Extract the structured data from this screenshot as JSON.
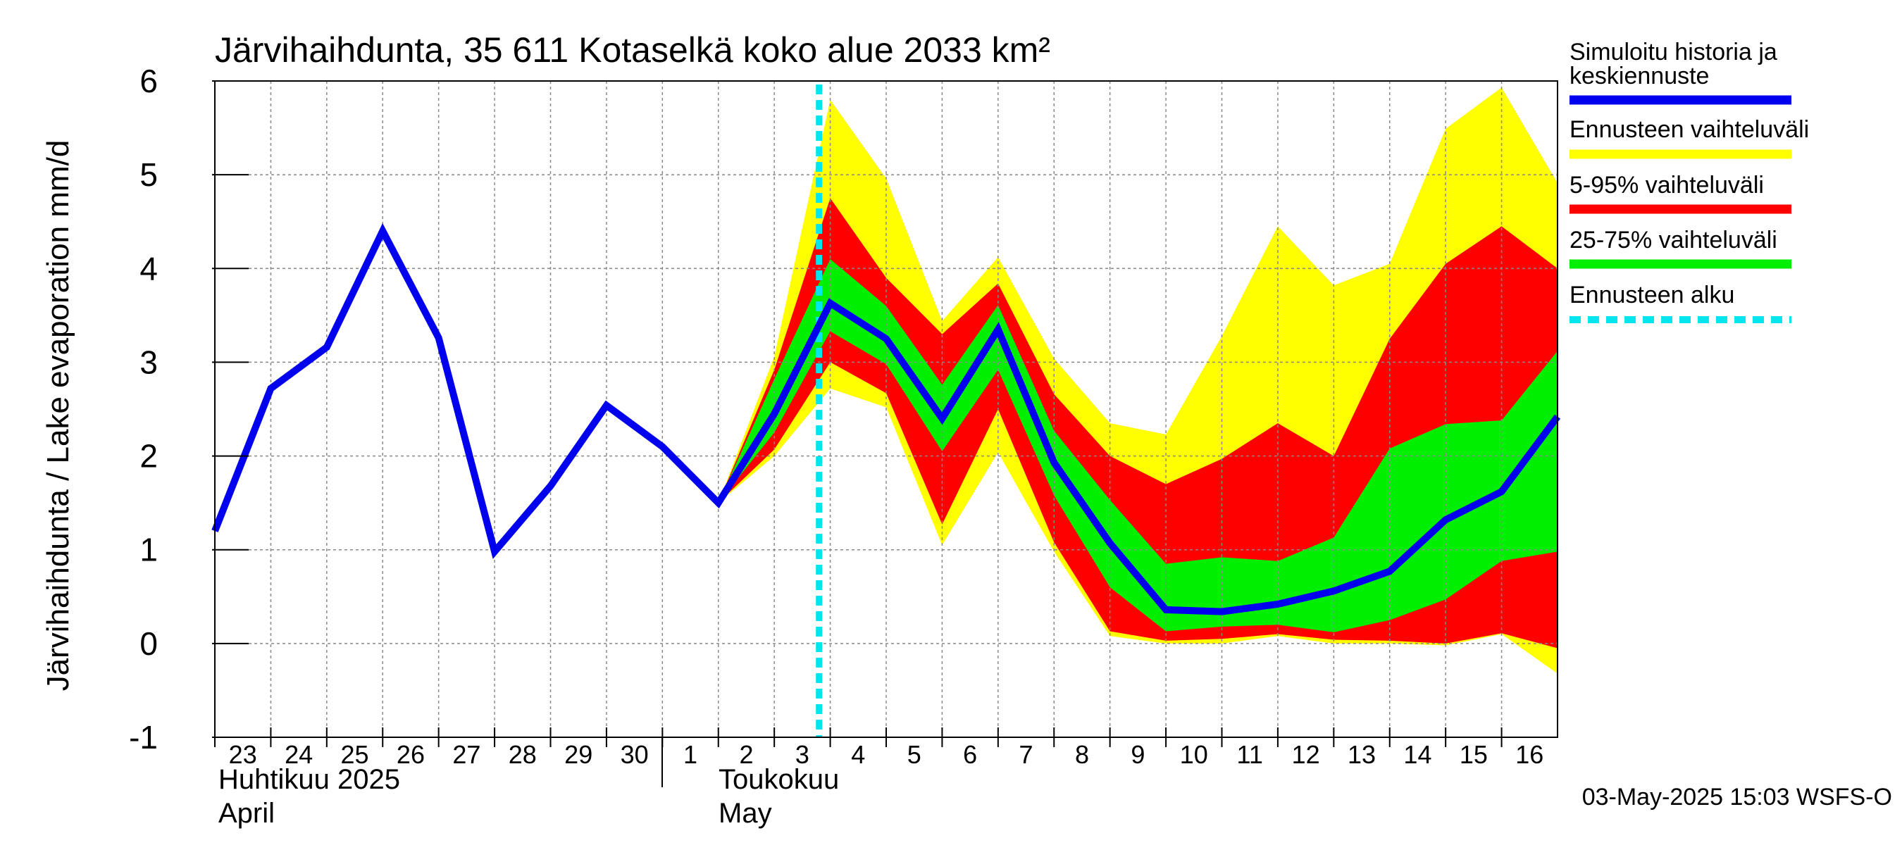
{
  "chart_data": {
    "type": "area",
    "title": "Järvihaihdunta, 35 611 Kotaselkä koko alue 2033 km²",
    "ylabel": "Järvihaihdunta / Lake evaporation   mm/d",
    "ylim": [
      -1,
      6
    ],
    "yticks": [
      -1,
      0,
      1,
      2,
      3,
      4,
      5,
      6
    ],
    "x_day_labels": [
      "23",
      "24",
      "25",
      "26",
      "27",
      "28",
      "29",
      "30",
      "1",
      "2",
      "3",
      "4",
      "5",
      "6",
      "7",
      "8",
      "9",
      "10",
      "11",
      "12",
      "13",
      "14",
      "15",
      "16"
    ],
    "month_labels": {
      "april_fi": "Huhtikuu  2025",
      "april_en": "April",
      "may_fi": "Toukokuu",
      "may_en": "May"
    },
    "forecast_start_day": 2.8,
    "history": {
      "x": [
        0,
        1,
        2,
        3,
        4,
        5,
        6,
        7,
        8,
        9
      ],
      "values": [
        1.2,
        2.72,
        3.16,
        4.4,
        3.26,
        0.98,
        1.68,
        2.54,
        2.1,
        1.5
      ]
    },
    "forecast_x": [
      9,
      10,
      11,
      12,
      13,
      14,
      15,
      16,
      17,
      18,
      19,
      20,
      21,
      22,
      23,
      24
    ],
    "series": [
      {
        "name": "Simuloitu historia ja keskiennuste",
        "role": "median",
        "values": [
          1.5,
          2.45,
          3.63,
          3.25,
          2.4,
          3.35,
          1.93,
          1.07,
          0.36,
          0.34,
          0.42,
          0.56,
          0.77,
          1.32,
          1.62,
          2.42
        ]
      },
      {
        "name": "Ennusteen vaihteluväli",
        "role": "band_minmax",
        "lower": [
          1.5,
          2.0,
          2.72,
          2.52,
          1.05,
          2.04,
          0.98,
          0.08,
          0.0,
          0.0,
          0.08,
          0.0,
          0.0,
          -0.02,
          0.1,
          -0.32
        ],
        "upper": [
          1.5,
          3.06,
          5.8,
          4.96,
          3.44,
          4.12,
          3.04,
          2.35,
          2.23,
          3.28,
          4.45,
          3.82,
          4.05,
          5.49,
          5.93,
          4.91
        ]
      },
      {
        "name": "5-95% vaihteluväli",
        "role": "band_5_95",
        "lower": [
          1.5,
          2.07,
          3.0,
          2.67,
          1.27,
          2.5,
          1.08,
          0.13,
          0.03,
          0.05,
          0.1,
          0.04,
          0.03,
          0.0,
          0.11,
          -0.05
        ],
        "upper": [
          1.5,
          2.92,
          4.75,
          3.9,
          3.3,
          3.84,
          2.66,
          2.0,
          1.7,
          1.97,
          2.35,
          2.0,
          3.25,
          4.05,
          4.45,
          4.0
        ]
      },
      {
        "name": "25-75% vaihteluväli",
        "role": "band_25_75",
        "lower": [
          1.5,
          2.25,
          3.33,
          2.98,
          2.05,
          2.92,
          1.58,
          0.6,
          0.13,
          0.18,
          0.2,
          0.12,
          0.25,
          0.47,
          0.88,
          0.98
        ]
      },
      {
        "name": "Ennusteen alku",
        "role": "forecast_start"
      }
    ],
    "band_25_75_upper": [
      1.5,
      2.82,
      4.1,
      3.6,
      2.76,
      3.61,
      2.27,
      1.53,
      0.85,
      0.92,
      0.88,
      1.13,
      2.08,
      2.34,
      2.38,
      3.12
    ],
    "colors": {
      "median": "#0000ee",
      "band_minmax": "#ffff00",
      "band_5_95": "#ff0000",
      "band_25_75": "#00ee00",
      "forecast_start": "#00e5ee",
      "grid": "#888888"
    },
    "grid": true,
    "legend_position": "right",
    "footer": "03-May-2025 15:03 WSFS-O"
  }
}
